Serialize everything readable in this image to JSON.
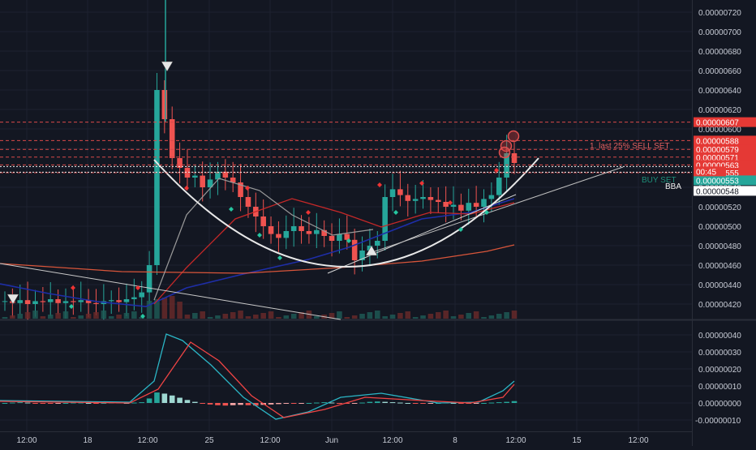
{
  "theme": {
    "bg": "#131722",
    "grid": "#1e2230",
    "axis_text": "#c8ccd6",
    "up": "#26a69a",
    "down": "#ef5350",
    "sell_line": "#d94a4a",
    "white_line": "#e8e8e8",
    "blue_ma": "#1e2ea8",
    "red_ma": "#c62828",
    "orange_ma": "#d8553a",
    "gray_ma": "#9a9a9a",
    "macd_line": "#2bb6c6",
    "signal_line": "#ef4444"
  },
  "chart_data": [
    {
      "type": "candlestick",
      "pane": "price",
      "y_axis": {
        "ylim": [
          4.1e-06,
          7.3e-06
        ],
        "ticks": [
          "0.00000720",
          "0.00000700",
          "0.00000680",
          "0.00000660",
          "0.00000640",
          "0.00000620",
          "0.00000600",
          "0.00000580",
          "0.00000560",
          "0.00000540",
          "0.00000520",
          "0.00000500",
          "0.00000480",
          "0.00000460",
          "0.00000440",
          "0.00000420"
        ]
      },
      "x_axis": {
        "ticks": [
          "12:00",
          "18",
          "12:00",
          "25",
          "12:00",
          "Jun",
          "12:00",
          "8",
          "12:00",
          "15",
          "12:00"
        ]
      },
      "close_path": [
        4.23e-06,
        4.21e-06,
        4.24e-06,
        4.2e-06,
        4.23e-06,
        4.22e-06,
        4.25e-06,
        4.21e-06,
        4.23e-06,
        4.22e-06,
        4.24e-06,
        4.21e-06,
        4.2e-06,
        4.23e-06,
        4.24e-06,
        4.22e-06,
        4.25e-06,
        4.27e-06,
        4.32e-06,
        4.6e-06,
        6.4e-06,
        6.1e-06,
        5.7e-06,
        5.6e-06,
        5.5e-06,
        5.52e-06,
        5.4e-06,
        5.48e-06,
        5.56e-06,
        5.5e-06,
        5.45e-06,
        5.3e-06,
        5.2e-06,
        5.1e-06,
        5e-06,
        4.92e-06,
        4.88e-06,
        4.95e-06,
        5e-06,
        4.95e-06,
        4.92e-06,
        4.96e-06,
        4.9e-06,
        4.85e-06,
        4.92e-06,
        4.86e-06,
        4.65e-06,
        4.75e-06,
        4.8e-06,
        4.85e-06,
        5.3e-06,
        5.38e-06,
        5.32e-06,
        5.26e-06,
        5.28e-06,
        5.3e-06,
        5.27e-06,
        5.25e-06,
        5.2e-06,
        5.22e-06,
        5.16e-06,
        5.24e-06,
        5.2e-06,
        5.28e-06,
        5.32e-06,
        5.5e-06,
        5.75e-06,
        5.65e-06
      ],
      "price_lines": [
        {
          "price": 6.07e-06,
          "label": "0.00000607"
        },
        {
          "price": 5.88e-06,
          "label": "0.00000588"
        },
        {
          "price": 5.79e-06,
          "label": "0.00000579"
        },
        {
          "price": 5.71e-06,
          "label": "0.00000571"
        },
        {
          "price": 5.63e-06,
          "label": "0.00000563"
        },
        {
          "price": 5.55e-06,
          "label": "0.00000555"
        }
      ],
      "current": {
        "price": 5.53e-06,
        "label": "0.00000553",
        "countdown": "00:45"
      },
      "bid_label": "0.00000548",
      "annotations": [
        {
          "text": "1. last 25% SELL SET"
        },
        {
          "text": "BUY SET"
        },
        {
          "text": "BBA"
        }
      ]
    },
    {
      "type": "macd",
      "pane": "oscillator",
      "y_axis": {
        "ylim": [
          -1e-07,
          4e-07
        ],
        "ticks": [
          "0.00000040",
          "0.00000030",
          "0.00000020",
          "0.00000010",
          "0.00000000",
          "-0.00000010"
        ]
      },
      "histogram": [
        0,
        0.01,
        0.02,
        0.01,
        -0.01,
        -0.02,
        -0.02,
        -0.01,
        0,
        0.01,
        0.01,
        0,
        -0.01,
        0,
        0.01,
        0.01,
        0,
        0.01,
        0.02,
        0.12,
        0.28,
        0.25,
        0.2,
        0.14,
        0.08,
        0.03,
        -0.01,
        -0.04,
        -0.06,
        -0.07,
        -0.06,
        -0.05,
        -0.06,
        -0.07,
        -0.05,
        -0.04,
        -0.03,
        -0.02,
        -0.02,
        -0.01,
        0,
        0.01,
        0.02,
        0.01,
        -0.01,
        -0.02,
        -0.01,
        0.01,
        0.03,
        0.04,
        0.03,
        0.02,
        0.01,
        0,
        -0.01,
        -0.02,
        -0.01,
        0,
        0.01,
        0,
        -0.01,
        -0.02,
        -0.01,
        0,
        0.01,
        0.02,
        0.03,
        0.05
      ]
    }
  ]
}
